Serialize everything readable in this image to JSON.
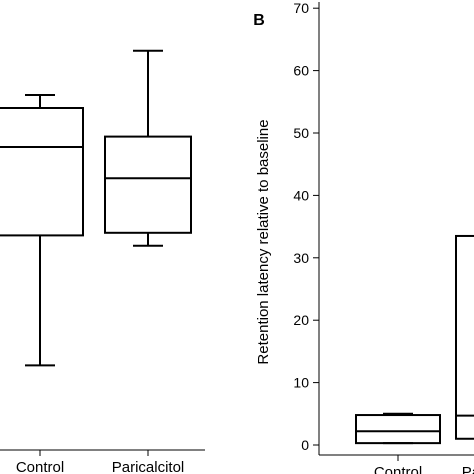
{
  "chart_data": [
    {
      "type": "box",
      "categories": [
        "Control",
        "Paricalcitol"
      ],
      "boxes": [
        {
          "category": "Control",
          "whisker_low": -42,
          "q1": -17,
          "median": 0,
          "q3": 7.5,
          "whisker_high": 10
        },
        {
          "category": "Paricalcitol",
          "whisker_low": -19,
          "q1": -16.5,
          "median": -6,
          "q3": 2,
          "whisker_high": 18.5
        }
      ],
      "ylim": [
        -63,
        29
      ]
    },
    {
      "panel_label": "B",
      "type": "box",
      "categories": [
        "Control",
        "Paricalcitol"
      ],
      "ylabel": "Retention latency relative to baseline",
      "yticks": [
        0,
        10,
        20,
        30,
        40,
        50,
        60,
        70
      ],
      "ylim": [
        -2,
        70
      ],
      "boxes": [
        {
          "category": "Control",
          "whisker_low": 0.3,
          "q1": 0.3,
          "median": 2.2,
          "q3": 4.8,
          "whisker_high": 5
        },
        {
          "category": "Paricalcitol",
          "whisker_low": 1,
          "q1": 1,
          "median": 4.7,
          "q3": 33.5,
          "whisker_high": 33.5
        }
      ]
    }
  ]
}
